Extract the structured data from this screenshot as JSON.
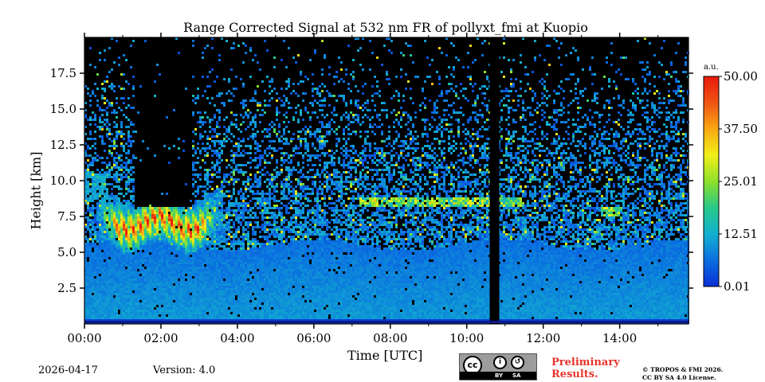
{
  "chart_data": {
    "type": "heatmap",
    "title": "Range Corrected Signal at 532 nm FR of pollyxt_fmi at Kuopio",
    "xlabel": "Time [UTC]",
    "ylabel": "Height [km]",
    "xlim_hours": [
      0,
      15.8
    ],
    "ylim_km": [
      0,
      20
    ],
    "x_ticks": [
      {
        "v": 0,
        "label": "00:00"
      },
      {
        "v": 2,
        "label": "02:00"
      },
      {
        "v": 4,
        "label": "04:00"
      },
      {
        "v": 6,
        "label": "06:00"
      },
      {
        "v": 8,
        "label": "08:00"
      },
      {
        "v": 10,
        "label": "10:00"
      },
      {
        "v": 12,
        "label": "12:00"
      },
      {
        "v": 14,
        "label": "14:00"
      }
    ],
    "y_ticks": [
      {
        "v": 2.5,
        "label": "2.5"
      },
      {
        "v": 5.0,
        "label": "5.0"
      },
      {
        "v": 7.5,
        "label": "7.5"
      },
      {
        "v": 10.0,
        "label": "10.0"
      },
      {
        "v": 12.5,
        "label": "12.5"
      },
      {
        "v": 15.0,
        "label": "15.0"
      },
      {
        "v": 17.5,
        "label": "17.5"
      }
    ],
    "colorbar": {
      "unit": "a.u.",
      "range": [
        0.01,
        50.0
      ],
      "ticks": [
        {
          "v": 0.01,
          "label": "0.01"
        },
        {
          "v": 12.51,
          "label": "12.51"
        },
        {
          "v": 25.01,
          "label": "25.01"
        },
        {
          "v": 37.5,
          "label": "37.50"
        },
        {
          "v": 50.0,
          "label": "50.00"
        }
      ],
      "colors": [
        "#0a2fd6",
        "#0a6fe0",
        "#12b0cf",
        "#28c98a",
        "#8ee02a",
        "#f2f019",
        "#f8a812",
        "#f05314",
        "#e81a0c"
      ]
    },
    "features": [
      {
        "name": "aerosol layer / boundary layer",
        "start_h": 0,
        "end_h": 15.8,
        "top_km": 5.5
      },
      {
        "name": "cirrus cloud",
        "start_h": 0.3,
        "end_h": 3.6,
        "base_km": 5.2,
        "top_km": 8.8,
        "peak_signal": 50
      },
      {
        "name": "thin cloud layer",
        "start_h": 7.2,
        "end_h": 11.5,
        "height_km": 8.5
      },
      {
        "name": "thin cloud layer",
        "start_h": 13.5,
        "end_h": 14.0,
        "height_km": 7.8
      },
      {
        "name": "missing data gap",
        "start_h": 10.6,
        "end_h": 10.85
      },
      {
        "name": "no signal above cloud",
        "start_h": 1.3,
        "end_h": 2.8,
        "base_km": 8.2
      }
    ]
  },
  "footer": {
    "date": "2026-04-17",
    "version": "Version: 4.0",
    "preliminary": "Preliminary Results.",
    "copyright_line1": "© TROPOS & FMI 2026.",
    "copyright_line2": "CC BY SA 4.0 License.",
    "license_by": "BY",
    "license_sa": "SA",
    "license_cc": "cc"
  }
}
